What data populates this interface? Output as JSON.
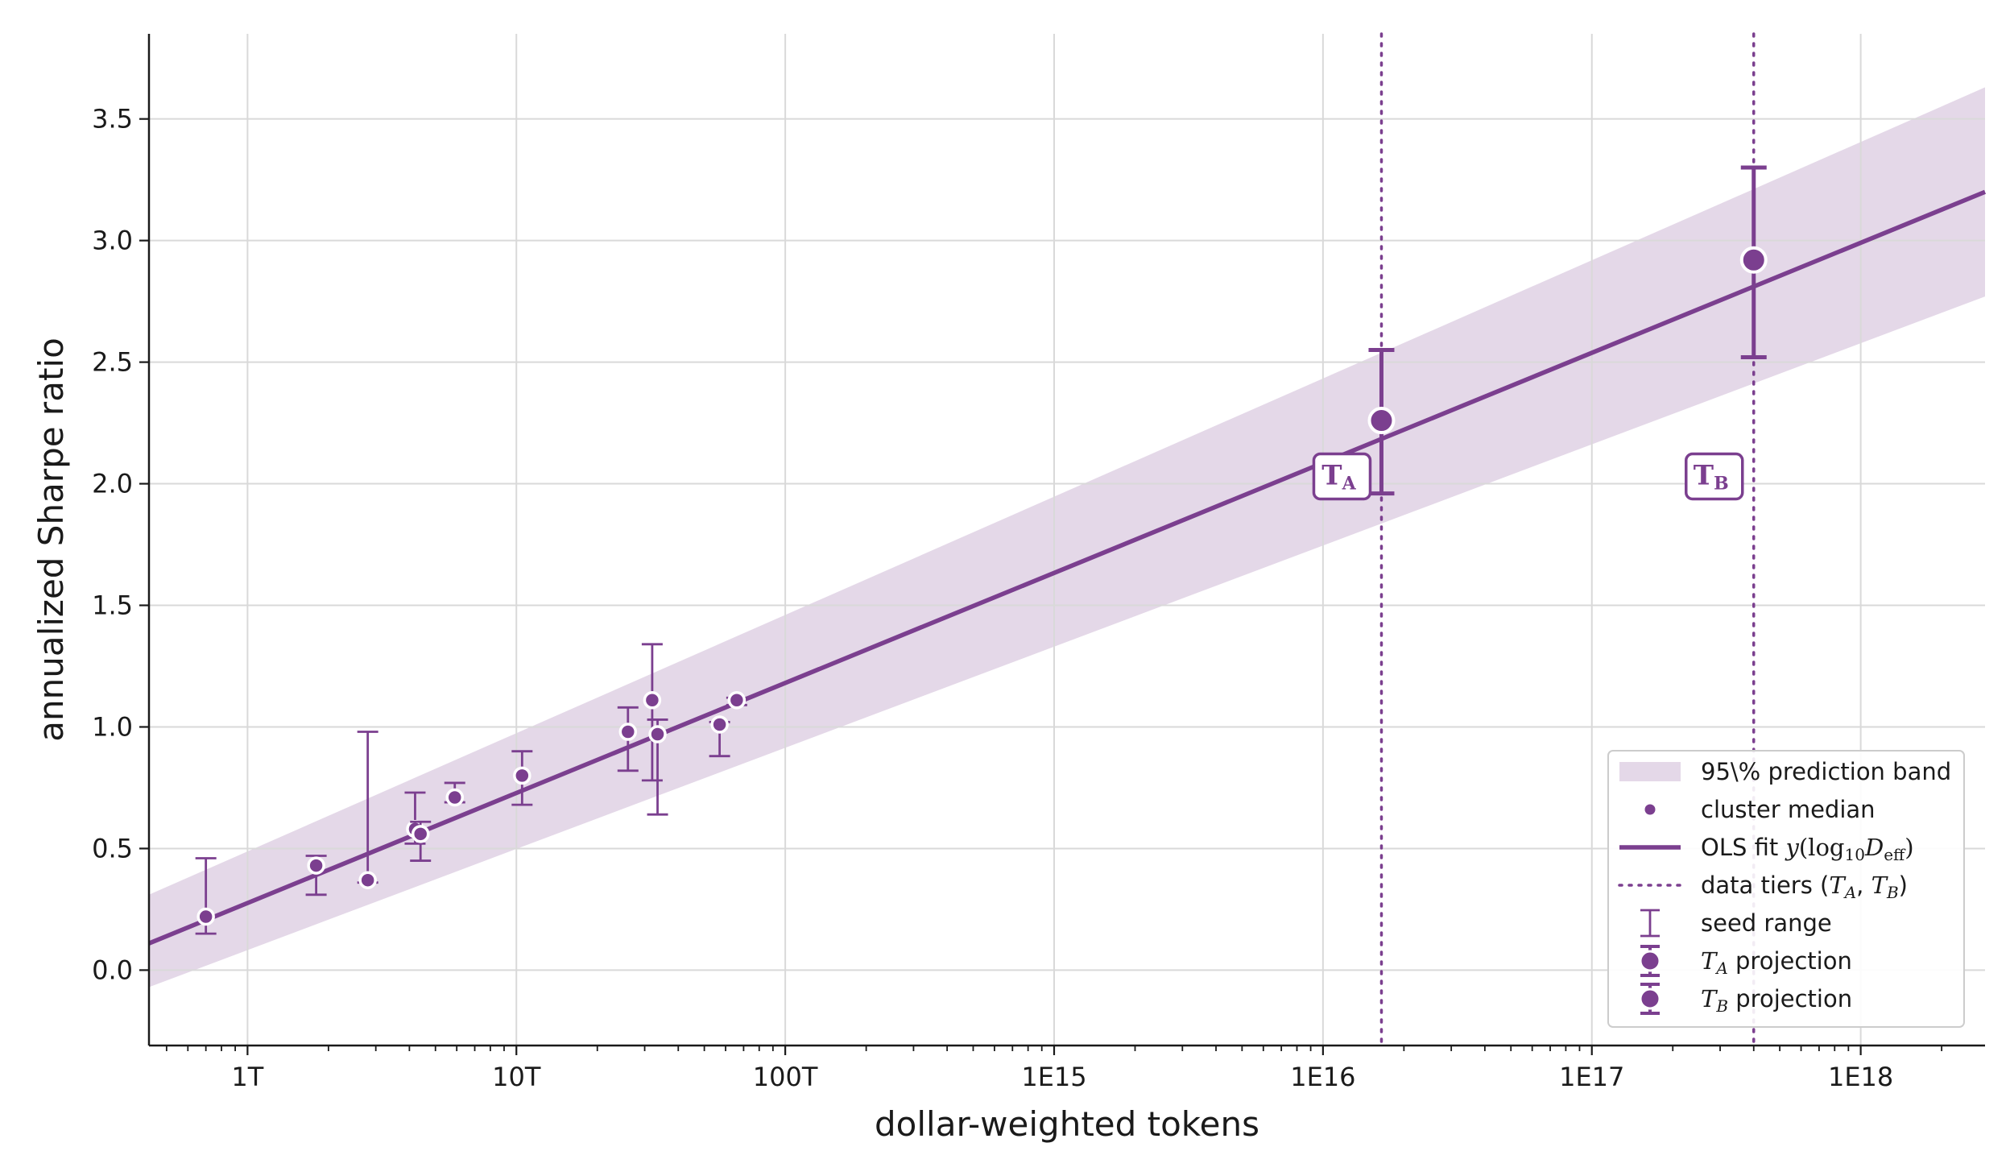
{
  "chart_data": {
    "type": "scatter",
    "xscale": "log",
    "xlabel": "dollar-weighted tokens",
    "ylabel": "annualized Sharpe ratio",
    "xlim": [
      430000000000.0,
      2.9e+18
    ],
    "ylim": [
      -0.31,
      3.85
    ],
    "x_ticks": [
      {
        "value": 1000000000000.0,
        "label": "1T"
      },
      {
        "value": 10000000000000.0,
        "label": "10T"
      },
      {
        "value": 100000000000000.0,
        "label": "100T"
      },
      {
        "value": 1000000000000000.0,
        "label": "1E15"
      },
      {
        "value": 1e+16,
        "label": "1E16"
      },
      {
        "value": 1e+17,
        "label": "1E17"
      },
      {
        "value": 1e+18,
        "label": "1E18"
      }
    ],
    "y_ticks": [
      {
        "value": 0.0,
        "label": "0.0"
      },
      {
        "value": 0.5,
        "label": "0.5"
      },
      {
        "value": 1.0,
        "label": "1.0"
      },
      {
        "value": 1.5,
        "label": "1.5"
      },
      {
        "value": 2.0,
        "label": "2.0"
      },
      {
        "value": 2.5,
        "label": "2.5"
      },
      {
        "value": 3.0,
        "label": "3.0"
      },
      {
        "value": 3.5,
        "label": "3.5"
      }
    ],
    "grid": true,
    "colors": {
      "accent": "#7b3f8f",
      "band": "#e4d8e8",
      "grid": "#d9d9d9",
      "axis": "#1a1a1a"
    },
    "fit_line": {
      "x": [
        430000000000.0,
        2.9e+18
      ],
      "y": [
        0.11,
        3.2
      ]
    },
    "prediction_band": {
      "x": [
        430000000000.0,
        2.9e+18
      ],
      "upper": [
        0.31,
        3.63
      ],
      "lower": [
        -0.07,
        2.77
      ]
    },
    "cluster_medians": [
      {
        "x": 700000000000.0,
        "y": 0.22,
        "lo": 0.15,
        "hi": 0.46
      },
      {
        "x": 1800000000000.0,
        "y": 0.43,
        "lo": 0.31,
        "hi": 0.47
      },
      {
        "x": 2800000000000.0,
        "y": 0.37,
        "lo": 0.36,
        "hi": 0.98
      },
      {
        "x": 4200000000000.0,
        "y": 0.58,
        "lo": 0.52,
        "hi": 0.73
      },
      {
        "x": 4400000000000.0,
        "y": 0.56,
        "lo": 0.45,
        "hi": 0.61
      },
      {
        "x": 5900000000000.0,
        "y": 0.71,
        "lo": 0.69,
        "hi": 0.77
      },
      {
        "x": 10500000000000.0,
        "y": 0.8,
        "lo": 0.68,
        "hi": 0.9
      },
      {
        "x": 26000000000000.0,
        "y": 0.98,
        "lo": 0.82,
        "hi": 1.08
      },
      {
        "x": 32000000000000.0,
        "y": 1.11,
        "lo": 0.78,
        "hi": 1.34
      },
      {
        "x": 33500000000000.0,
        "y": 0.97,
        "lo": 0.64,
        "hi": 1.03
      },
      {
        "x": 57000000000000.0,
        "y": 1.01,
        "lo": 0.88,
        "hi": 1.02
      },
      {
        "x": 66000000000000.0,
        "y": 1.11,
        "lo": 1.09,
        "hi": 1.12
      }
    ],
    "tiers": [
      {
        "name": "T_A",
        "label_main": "T",
        "label_sub": "A",
        "x": 1.65e+16,
        "y": 2.26,
        "lo": 1.96,
        "hi": 2.55
      },
      {
        "name": "T_B",
        "label_main": "T",
        "label_sub": "B",
        "x": 4e+17,
        "y": 2.92,
        "lo": 2.52,
        "hi": 3.3
      }
    ],
    "legend": {
      "position": "lower-right",
      "entries": [
        {
          "kind": "band",
          "html": "95\\% prediction band"
        },
        {
          "kind": "dot",
          "html": "cluster median"
        },
        {
          "kind": "line",
          "html": "OLS fit <tspan font-family='DejaVu Serif, serif' font-style='italic'>y</tspan><tspan font-family='DejaVu Serif, serif'>(log</tspan><tspan font-family='DejaVu Serif, serif' font-size='20' dy='6'>10</tspan><tspan font-family='DejaVu Serif, serif' font-style='italic' dy='-6'>D</tspan><tspan font-family='DejaVu Serif, serif' font-size='20' dy='6'>eff</tspan><tspan font-family='DejaVu Serif, serif' dy='-6'>)</tspan>"
        },
        {
          "kind": "dotted",
          "html": "data tiers (<tspan font-family='DejaVu Serif, serif' font-style='italic'>T</tspan><tspan font-family='DejaVu Serif, serif' font-style='italic' font-size='20' dy='6'>A</tspan><tspan dy='-6'>, </tspan><tspan font-family='DejaVu Serif, serif' font-style='italic'>T</tspan><tspan font-family='DejaVu Serif, serif' font-style='italic' font-size='20' dy='6'>B</tspan><tspan dy='-6'>)</tspan>"
        },
        {
          "kind": "errorbar",
          "html": "seed range"
        },
        {
          "kind": "bigdot",
          "html": "<tspan font-family='DejaVu Serif, serif' font-style='italic'>T</tspan><tspan font-family='DejaVu Serif, serif' font-style='italic' font-size='20' dy='6'>A</tspan><tspan dy='-6'> projection</tspan>"
        },
        {
          "kind": "bigdot",
          "html": "<tspan font-family='DejaVu Serif, serif' font-style='italic'>T</tspan><tspan font-family='DejaVu Serif, serif' font-style='italic' font-size='20' dy='6'>B</tspan><tspan dy='-6'> projection</tspan>"
        }
      ]
    }
  }
}
